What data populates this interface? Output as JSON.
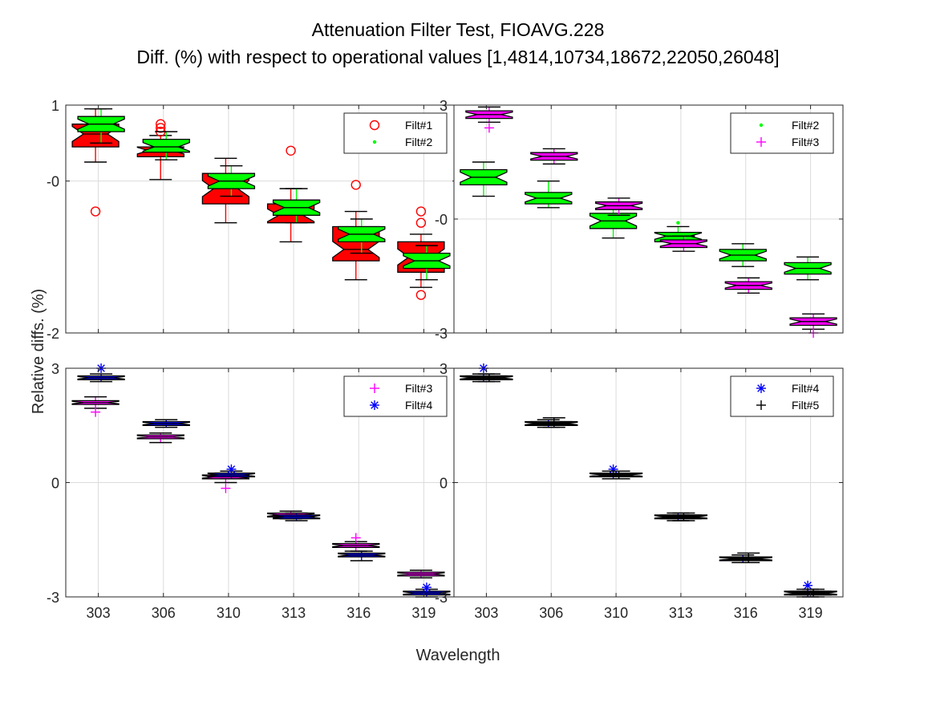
{
  "figure": {
    "title_line1": "Attenuation Filter Test, FIOAVG.228",
    "title_line2": "Diff. (%) with respect to operational values [1,4814,10734,18672,22050,26048]",
    "ylabel": "Relative diffs. (%)",
    "xlabel": "Wavelength"
  },
  "colors": {
    "Filt#1": "#ff0000",
    "Filt#2": "#00ff00",
    "Filt#3": "#ff00ff",
    "Filt#4": "#0000ff",
    "Filt#5": "#000000",
    "grid": "#dcdcdc",
    "axis": "#262626"
  },
  "chart_data": [
    {
      "type": "box",
      "panel": "top-left",
      "categories": [
        "303",
        "306",
        "310",
        "313",
        "316",
        "319"
      ],
      "ylim": [
        -2,
        1
      ],
      "yticks": [
        1,
        0,
        -2
      ],
      "ytick_labels": [
        "1",
        "-0",
        "-2"
      ],
      "grid": true,
      "legend_position": "top-right",
      "legend": [
        "Filt#1",
        "Filt#2"
      ],
      "series": [
        {
          "name": "Filt#1",
          "marker": "circle",
          "face": "#ff0000",
          "boxes": [
            {
              "q1": 0.45,
              "median": 0.62,
              "q3": 0.75,
              "wlo": 0.25,
              "whi": 0.95,
              "outliers": [
                -0.4
              ]
            },
            {
              "q1": 0.32,
              "median": 0.4,
              "q3": 0.45,
              "wlo": 0.02,
              "whi": 0.6,
              "outliers": [
                0.65,
                0.7,
                0.75
              ]
            },
            {
              "q1": -0.3,
              "median": -0.1,
              "q3": 0.1,
              "wlo": -0.55,
              "whi": 0.3,
              "outliers": []
            },
            {
              "q1": -0.55,
              "median": -0.45,
              "q3": -0.3,
              "wlo": -0.8,
              "whi": -0.1,
              "outliers": [
                0.4
              ]
            },
            {
              "q1": -1.05,
              "median": -0.9,
              "q3": -0.6,
              "wlo": -1.3,
              "whi": -0.4,
              "outliers": [
                -0.05
              ]
            },
            {
              "q1": -1.2,
              "median": -1.0,
              "q3": -0.8,
              "wlo": -1.4,
              "whi": -0.7,
              "outliers": [
                -0.4,
                -0.55,
                -1.5
              ]
            }
          ]
        },
        {
          "name": "Filt#2",
          "marker": "point",
          "face": "#00ff00",
          "boxes": [
            {
              "q1": 0.65,
              "median": 0.75,
              "q3": 0.85,
              "wlo": 0.5,
              "whi": 0.95,
              "outliers": []
            },
            {
              "q1": 0.38,
              "median": 0.45,
              "q3": 0.55,
              "wlo": 0.28,
              "whi": 0.65,
              "outliers": []
            },
            {
              "q1": -0.1,
              "median": 0.0,
              "q3": 0.1,
              "wlo": -0.2,
              "whi": 0.2,
              "outliers": []
            },
            {
              "q1": -0.45,
              "median": -0.35,
              "q3": -0.25,
              "wlo": -0.55,
              "whi": -0.1,
              "outliers": []
            },
            {
              "q1": -0.8,
              "median": -0.7,
              "q3": -0.6,
              "wlo": -0.95,
              "whi": -0.5,
              "outliers": []
            },
            {
              "q1": -1.15,
              "median": -1.05,
              "q3": -0.95,
              "wlo": -1.3,
              "whi": -0.85,
              "outliers": []
            }
          ]
        }
      ]
    },
    {
      "type": "box",
      "panel": "top-right",
      "categories": [
        "303",
        "306",
        "310",
        "313",
        "316",
        "319"
      ],
      "ylim": [
        -3,
        3
      ],
      "yticks": [
        3,
        0,
        -3
      ],
      "ytick_labels": [
        "3",
        "-0",
        "-3"
      ],
      "grid": true,
      "legend_position": "top-right",
      "legend": [
        "Filt#2",
        "Filt#3"
      ],
      "series": [
        {
          "name": "Filt#2",
          "marker": "point",
          "face": "#00ff00",
          "boxes": [
            {
              "q1": 0.9,
              "median": 1.1,
              "q3": 1.3,
              "wlo": 0.6,
              "whi": 1.5,
              "outliers": []
            },
            {
              "q1": 0.4,
              "median": 0.55,
              "q3": 0.7,
              "wlo": 0.3,
              "whi": 1.0,
              "outliers": []
            },
            {
              "q1": -0.25,
              "median": -0.05,
              "q3": 0.15,
              "wlo": -0.5,
              "whi": 0.4,
              "outliers": []
            },
            {
              "q1": -0.6,
              "median": -0.45,
              "q3": -0.35,
              "wlo": -0.7,
              "whi": -0.2,
              "outliers": [
                -0.1
              ]
            },
            {
              "q1": -1.1,
              "median": -0.95,
              "q3": -0.8,
              "wlo": -1.25,
              "whi": -0.65,
              "outliers": []
            },
            {
              "q1": -1.45,
              "median": -1.3,
              "q3": -1.15,
              "wlo": -1.6,
              "whi": -1.0,
              "outliers": []
            }
          ]
        },
        {
          "name": "Filt#3",
          "marker": "plus",
          "face": "#ff00ff",
          "boxes": [
            {
              "q1": 2.65,
              "median": 2.75,
              "q3": 2.85,
              "wlo": 2.55,
              "whi": 2.95,
              "outliers": [
                2.4
              ]
            },
            {
              "q1": 1.55,
              "median": 1.65,
              "q3": 1.75,
              "wlo": 1.45,
              "whi": 1.85,
              "outliers": []
            },
            {
              "q1": 0.25,
              "median": 0.35,
              "q3": 0.45,
              "wlo": 0.1,
              "whi": 0.55,
              "outliers": []
            },
            {
              "q1": -0.75,
              "median": -0.65,
              "q3": -0.55,
              "wlo": -0.85,
              "whi": -0.45,
              "outliers": []
            },
            {
              "q1": -1.85,
              "median": -1.75,
              "q3": -1.65,
              "wlo": -1.95,
              "whi": -1.55,
              "outliers": []
            },
            {
              "q1": -2.8,
              "median": -2.7,
              "q3": -2.6,
              "wlo": -2.9,
              "whi": -2.5,
              "outliers": [
                -3.0
              ]
            }
          ]
        }
      ]
    },
    {
      "type": "box",
      "panel": "bottom-left",
      "categories": [
        "303",
        "306",
        "310",
        "313",
        "316",
        "319"
      ],
      "ylim": [
        -3,
        3
      ],
      "yticks": [
        3,
        0,
        -3
      ],
      "ytick_labels": [
        "3",
        "0",
        "-3"
      ],
      "grid": true,
      "legend_position": "top-right",
      "legend": [
        "Filt#3",
        "Filt#4"
      ],
      "series": [
        {
          "name": "Filt#3",
          "marker": "plus",
          "face": "#ff00ff",
          "boxes": [
            {
              "q1": 2.05,
              "median": 2.1,
              "q3": 2.15,
              "wlo": 1.95,
              "whi": 2.25,
              "outliers": [
                1.85
              ]
            },
            {
              "q1": 1.15,
              "median": 1.2,
              "q3": 1.25,
              "wlo": 1.05,
              "whi": 1.3,
              "outliers": []
            },
            {
              "q1": 0.1,
              "median": 0.15,
              "q3": 0.2,
              "wlo": 0.0,
              "whi": 0.25,
              "outliers": [
                -0.15
              ]
            },
            {
              "q1": -0.9,
              "median": -0.85,
              "q3": -0.8,
              "wlo": -0.95,
              "whi": -0.75,
              "outliers": []
            },
            {
              "q1": -1.7,
              "median": -1.65,
              "q3": -1.6,
              "wlo": -1.8,
              "whi": -1.55,
              "outliers": [
                -1.45
              ]
            },
            {
              "q1": -2.45,
              "median": -2.4,
              "q3": -2.35,
              "wlo": -2.5,
              "whi": -2.3,
              "outliers": []
            }
          ]
        },
        {
          "name": "Filt#4",
          "marker": "asterisk",
          "face": "#0000ff",
          "boxes": [
            {
              "q1": 2.7,
              "median": 2.75,
              "q3": 2.8,
              "wlo": 2.65,
              "whi": 2.85,
              "outliers": [
                3.0
              ]
            },
            {
              "q1": 1.5,
              "median": 1.55,
              "q3": 1.6,
              "wlo": 1.45,
              "whi": 1.65,
              "outliers": []
            },
            {
              "q1": 0.15,
              "median": 0.2,
              "q3": 0.25,
              "wlo": 0.1,
              "whi": 0.3,
              "outliers": [
                0.35
              ]
            },
            {
              "q1": -0.95,
              "median": -0.9,
              "q3": -0.85,
              "wlo": -1.0,
              "whi": -0.8,
              "outliers": []
            },
            {
              "q1": -1.95,
              "median": -1.9,
              "q3": -1.85,
              "wlo": -2.05,
              "whi": -1.8,
              "outliers": []
            },
            {
              "q1": -2.95,
              "median": -2.9,
              "q3": -2.85,
              "wlo": -3.0,
              "whi": -2.8,
              "outliers": [
                -2.75
              ]
            }
          ]
        }
      ]
    },
    {
      "type": "box",
      "panel": "bottom-right",
      "categories": [
        "303",
        "306",
        "310",
        "313",
        "316",
        "319"
      ],
      "ylim": [
        -3,
        3
      ],
      "yticks": [
        3,
        0,
        -3
      ],
      "ytick_labels": [
        "3",
        "0",
        "-3"
      ],
      "grid": true,
      "legend_position": "top-right",
      "legend": [
        "Filt#4",
        "Filt#5"
      ],
      "series": [
        {
          "name": "Filt#4",
          "marker": "asterisk",
          "face": "#0000ff",
          "boxes": [
            {
              "q1": 2.7,
              "median": 2.75,
              "q3": 2.8,
              "wlo": 2.65,
              "whi": 2.85,
              "outliers": [
                3.0
              ]
            },
            {
              "q1": 1.5,
              "median": 1.55,
              "q3": 1.6,
              "wlo": 1.45,
              "whi": 1.65,
              "outliers": []
            },
            {
              "q1": 0.15,
              "median": 0.2,
              "q3": 0.25,
              "wlo": 0.1,
              "whi": 0.3,
              "outliers": [
                0.35
              ]
            },
            {
              "q1": -0.95,
              "median": -0.9,
              "q3": -0.85,
              "wlo": -1.0,
              "whi": -0.8,
              "outliers": []
            },
            {
              "q1": -2.05,
              "median": -2.0,
              "q3": -1.95,
              "wlo": -2.1,
              "whi": -1.9,
              "outliers": []
            },
            {
              "q1": -2.95,
              "median": -2.9,
              "q3": -2.85,
              "wlo": -3.0,
              "whi": -2.8,
              "outliers": [
                -2.7
              ]
            }
          ]
        },
        {
          "name": "Filt#5",
          "marker": "plus",
          "face": "#000000",
          "boxes": [
            {
              "q1": 2.7,
              "median": 2.75,
              "q3": 2.8,
              "wlo": 2.65,
              "whi": 2.85,
              "outliers": []
            },
            {
              "q1": 1.5,
              "median": 1.55,
              "q3": 1.6,
              "wlo": 1.45,
              "whi": 1.7,
              "outliers": []
            },
            {
              "q1": 0.15,
              "median": 0.2,
              "q3": 0.25,
              "wlo": 0.1,
              "whi": 0.3,
              "outliers": []
            },
            {
              "q1": -0.95,
              "median": -0.9,
              "q3": -0.85,
              "wlo": -1.0,
              "whi": -0.8,
              "outliers": []
            },
            {
              "q1": -2.05,
              "median": -2.0,
              "q3": -1.95,
              "wlo": -2.1,
              "whi": -1.85,
              "outliers": []
            },
            {
              "q1": -2.95,
              "median": -2.9,
              "q3": -2.85,
              "wlo": -3.0,
              "whi": -2.8,
              "outliers": []
            }
          ]
        }
      ]
    }
  ]
}
